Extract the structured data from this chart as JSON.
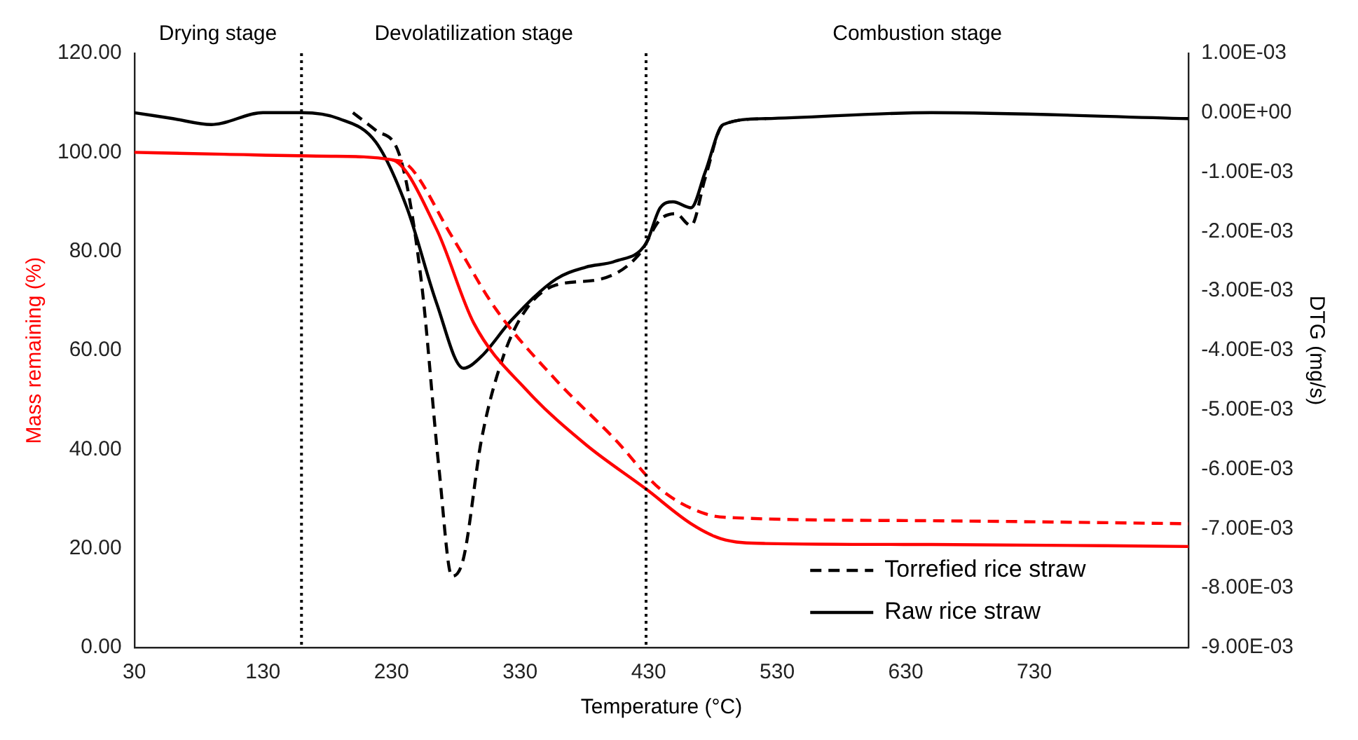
{
  "chart_data": {
    "type": "line",
    "xlabel": "Temperature (°C)",
    "ylabel": "Mass remaining (%)",
    "y2label": "DTG (mg/s)",
    "xlim": [
      30,
      850
    ],
    "xticks": [
      30,
      130,
      230,
      330,
      430,
      530,
      630,
      730
    ],
    "ylim": [
      0,
      120
    ],
    "yticks": [
      {
        "value": 0,
        "label": "0.00"
      },
      {
        "value": 20,
        "label": "20.00"
      },
      {
        "value": 40,
        "label": "40.00"
      },
      {
        "value": 60,
        "label": "60.00"
      },
      {
        "value": 80,
        "label": "80.00"
      },
      {
        "value": 100,
        "label": "100.00"
      },
      {
        "value": 120,
        "label": "120.00"
      }
    ],
    "y2lim": [
      -0.009,
      0.001
    ],
    "y2ticks": [
      {
        "value": -0.009,
        "label": "-9.00E-03"
      },
      {
        "value": -0.008,
        "label": "-8.00E-03"
      },
      {
        "value": -0.007,
        "label": "-7.00E-03"
      },
      {
        "value": -0.006,
        "label": "-6.00E-03"
      },
      {
        "value": -0.005,
        "label": "-5.00E-03"
      },
      {
        "value": -0.004,
        "label": "-4.00E-03"
      },
      {
        "value": -0.003,
        "label": "-3.00E-03"
      },
      {
        "value": -0.002,
        "label": "-2.00E-03"
      },
      {
        "value": -0.001,
        "label": "-1.00E-03"
      },
      {
        "value": 0,
        "label": "0.00E+00"
      },
      {
        "value": 0.001,
        "label": "1.00E-03"
      }
    ],
    "grid": false,
    "legend": "bottom right",
    "marker": "none",
    "ref_lines": [
      {
        "axis": "x",
        "value": 160,
        "line_style": "dotted",
        "color": "#000000"
      },
      {
        "axis": "x",
        "value": 428,
        "line_style": "dotted",
        "color": "#000000"
      }
    ],
    "annotations": [
      "Drying stage",
      "Devolatilization stage",
      "Combustion stage"
    ],
    "series": [
      {
        "color": "#ff0000",
        "line_style": "solid",
        "x": [
          30,
          100,
          183,
          230,
          265,
          294,
          335,
          381,
          428,
          463,
          486,
          521,
          650,
          850
        ],
        "values": [
          100,
          99.6,
          99.2,
          98.5,
          84.5,
          65.5,
          52,
          41,
          32,
          25,
          22,
          21,
          20.8,
          20.4
        ]
      },
      {
        "color": "#ff0000",
        "line_style": "dashed",
        "x": [
          230,
          242,
          277,
          311,
          358,
          404,
          439,
          474,
          497,
          650,
          850
        ],
        "values": [
          98.5,
          97.6,
          83,
          68.4,
          54,
          42,
          32,
          27,
          26.2,
          25.6,
          25
        ]
      },
      {
        "name": "Torrefied rice straw",
        "color": "#000000",
        "line_style": "dashed",
        "axis": "y2",
        "x": [
          200,
          218,
          236,
          253,
          267,
          277,
          286,
          300,
          317,
          335,
          358,
          393,
          422,
          439,
          451,
          463,
          474,
          488,
          521
        ],
        "values": [
          0,
          -0.0003,
          -0.0007,
          -0.0028,
          -0.006,
          -0.0078,
          -0.0075,
          -0.0055,
          -0.0041,
          -0.0033,
          -0.0029,
          -0.0028,
          -0.0024,
          -0.0018,
          -0.0017,
          -0.0019,
          -0.0011,
          -0.0002,
          -0.0001
        ]
      },
      {
        "name": "Raw rice straw",
        "color": "#000000",
        "line_style": "solid",
        "x": [
          30,
          60,
          90,
          130,
          160,
          189,
          218,
          242,
          265,
          286,
          300,
          323,
          358,
          381,
          404,
          428,
          439,
          449,
          463,
          474,
          488,
          521,
          650,
          850
        ],
        "values": [
          0,
          -0.0001,
          -0.0002,
          0,
          0,
          -0.0001,
          -0.0005,
          -0.0016,
          -0.0032,
          -0.0043,
          -0.0041,
          -0.0035,
          -0.0028,
          -0.0026,
          -0.0025,
          -0.0022,
          -0.0016,
          -0.0015,
          -0.0016,
          -0.001,
          -0.0002,
          -0.0001,
          0,
          -0.0001
        ],
        "axis": "y2"
      }
    ]
  }
}
